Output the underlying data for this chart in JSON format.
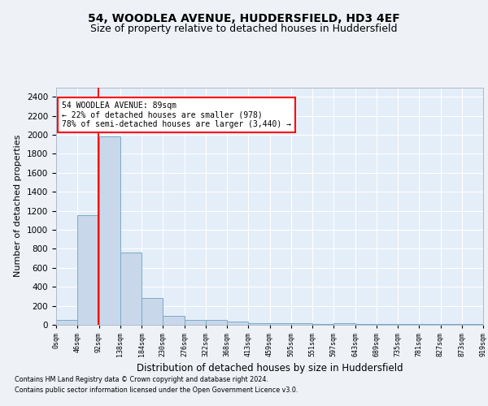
{
  "title1": "54, WOODLEA AVENUE, HUDDERSFIELD, HD3 4EF",
  "title2": "Size of property relative to detached houses in Huddersfield",
  "xlabel": "Distribution of detached houses by size in Huddersfield",
  "ylabel": "Number of detached properties",
  "bar_color": "#c8d8ea",
  "bar_edge_color": "#7aaac8",
  "bin_labels": [
    "0sqm",
    "46sqm",
    "92sqm",
    "138sqm",
    "184sqm",
    "230sqm",
    "276sqm",
    "322sqm",
    "368sqm",
    "413sqm",
    "459sqm",
    "505sqm",
    "551sqm",
    "597sqm",
    "643sqm",
    "689sqm",
    "735sqm",
    "781sqm",
    "827sqm",
    "873sqm",
    "919sqm"
  ],
  "bar_values": [
    50,
    1150,
    1980,
    760,
    285,
    95,
    48,
    48,
    30,
    15,
    20,
    15,
    10,
    15,
    10,
    10,
    10,
    10,
    10,
    10
  ],
  "red_line_x": 1.97,
  "annotation_line1": "54 WOODLEA AVENUE: 89sqm",
  "annotation_line2": "← 22% of detached houses are smaller (978)",
  "annotation_line3": "78% of semi-detached houses are larger (3,440) →",
  "ylim": [
    0,
    2500
  ],
  "yticks": [
    0,
    200,
    400,
    600,
    800,
    1000,
    1200,
    1400,
    1600,
    1800,
    2000,
    2200,
    2400
  ],
  "footnote1": "Contains HM Land Registry data © Crown copyright and database right 2024.",
  "footnote2": "Contains public sector information licensed under the Open Government Licence v3.0.",
  "bg_color": "#eef2f7",
  "plot_bg_color": "#e4eef8",
  "grid_color": "#ffffff",
  "title1_fontsize": 10,
  "title2_fontsize": 9
}
